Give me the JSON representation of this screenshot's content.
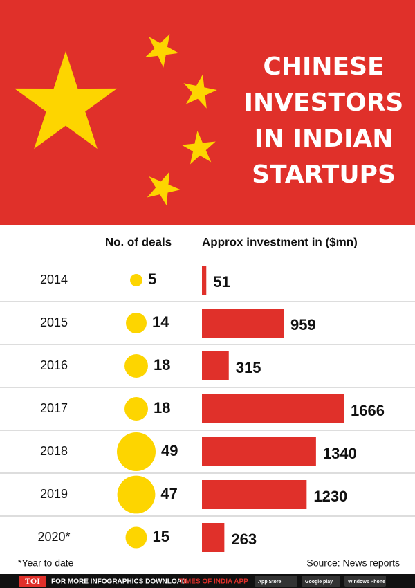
{
  "header": {
    "title_lines": [
      "CHINESE",
      "INVESTORS",
      "IN INDIAN",
      "STARTUPS"
    ]
  },
  "chart_data": {
    "type": "bar",
    "categories": [
      "2014",
      "2015",
      "2016",
      "2017",
      "2018",
      "2019",
      "2020*"
    ],
    "series": [
      {
        "name": "No. of deals",
        "color": "#fdd500",
        "values": [
          5,
          14,
          18,
          18,
          49,
          47,
          15
        ]
      },
      {
        "name": "Approx investment in ($mn)",
        "color": "#e0302a",
        "values": [
          51,
          959,
          315,
          1666,
          1340,
          1230,
          263
        ]
      }
    ]
  },
  "footnote": "*Year to date",
  "source": "Source: News reports",
  "footer": {
    "logo": "TOI",
    "text": "FOR MORE INFOGRAPHICS DOWNLOAD",
    "app": "TIMES OF INDIA APP",
    "badges": [
      "App Store",
      "Google play",
      "Windows Phone"
    ]
  }
}
